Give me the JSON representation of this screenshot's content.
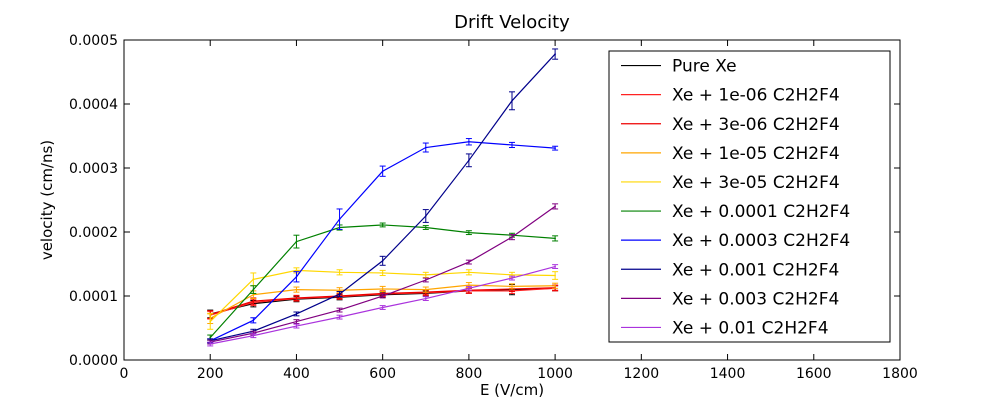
{
  "chart_data": {
    "type": "line",
    "title": "Drift Velocity",
    "xlabel": "E (V/cm)",
    "ylabel": "velocity (cm/ns)",
    "xlim": [
      0,
      1800
    ],
    "ylim": [
      0,
      0.0005
    ],
    "xticks": [
      "0",
      "200",
      "400",
      "600",
      "800",
      "1000",
      "1200",
      "1400",
      "1600",
      "1800"
    ],
    "yticks": [
      "0.0000",
      "0.0001",
      "0.0002",
      "0.0003",
      "0.0004",
      "0.0005"
    ],
    "grid": false,
    "legend_position": "top-right",
    "x": [
      200,
      300,
      400,
      500,
      600,
      700,
      800,
      900,
      1000
    ],
    "series": [
      {
        "name": "Pure Xe",
        "color": "#000000",
        "values": [
          7.2e-05,
          8.8e-05,
          9.5e-05,
          9.8e-05,
          0.000102,
          0.000104,
          0.000108,
          0.00011,
          0.000112
        ],
        "errors": [
          6e-06,
          5e-06,
          4e-06,
          4e-06,
          4e-06,
          4e-06,
          4e-06,
          8e-06,
          4e-06
        ]
      },
      {
        "name": "Xe + 1e-06 C2H2F4",
        "color": "#ff2222",
        "values": [
          7e-05,
          9e-05,
          9.6e-05,
          9.9e-05,
          0.000103,
          0.000105,
          0.000108,
          0.000108,
          0.000112
        ],
        "errors": [
          6e-06,
          5e-06,
          4e-06,
          4e-06,
          4e-06,
          4e-06,
          4e-06,
          4e-06,
          4e-06
        ]
      },
      {
        "name": "Xe + 3e-06 C2H2F4",
        "color": "#ee0000",
        "values": [
          7.1e-05,
          9.2e-05,
          9.7e-05,
          0.0001,
          0.000104,
          0.000106,
          0.000109,
          0.000111,
          0.000113
        ],
        "errors": [
          6e-06,
          5e-06,
          4e-06,
          4e-06,
          4e-06,
          4e-06,
          4e-06,
          4e-06,
          4e-06
        ]
      },
      {
        "name": "Xe + 1e-05 C2H2F4",
        "color": "#ffa500",
        "values": [
          6.5e-05,
          0.000102,
          0.00011,
          0.000109,
          0.000111,
          0.00011,
          0.000117,
          0.000115,
          0.000116
        ],
        "errors": [
          8e-06,
          6e-06,
          4e-06,
          4e-06,
          4e-06,
          4e-06,
          4e-06,
          4e-06,
          4e-06
        ]
      },
      {
        "name": "Xe + 3e-05 C2H2F4",
        "color": "#ffd700",
        "values": [
          6e-05,
          0.000126,
          0.00014,
          0.000137,
          0.000136,
          0.000133,
          0.000137,
          0.000133,
          0.000132
        ],
        "errors": [
          1.2e-05,
          1e-05,
          4e-06,
          4e-06,
          4e-06,
          4e-06,
          4e-06,
          4e-06,
          6e-06
        ]
      },
      {
        "name": "Xe + 0.0001 C2H2F4",
        "color": "#008000",
        "values": [
          3.5e-05,
          0.00011,
          0.000185,
          0.000207,
          0.000211,
          0.000207,
          0.000199,
          0.000195,
          0.00019
        ],
        "errors": [
          4e-06,
          6e-06,
          1e-05,
          4e-06,
          3e-06,
          3e-06,
          3e-06,
          3e-06,
          4e-06
        ]
      },
      {
        "name": "Xe + 0.0003 C2H2F4",
        "color": "#0000ff",
        "values": [
          3e-05,
          6.2e-05,
          0.00013,
          0.00022,
          0.000295,
          0.000332,
          0.000341,
          0.000336,
          0.000331
        ],
        "errors": [
          3e-06,
          4e-06,
          8e-06,
          1.6e-05,
          8e-06,
          7e-06,
          5e-06,
          4e-06,
          3e-06
        ]
      },
      {
        "name": "Xe + 0.001 C2H2F4",
        "color": "#00008b",
        "values": [
          3e-05,
          4.5e-05,
          7.2e-05,
          0.000103,
          0.000155,
          0.000225,
          0.000312,
          0.000405,
          0.000478
        ],
        "errors": [
          3e-06,
          3e-06,
          3e-06,
          4e-06,
          7e-06,
          1e-05,
          1e-05,
          1.4e-05,
          8e-06
        ]
      },
      {
        "name": "Xe + 0.003 C2H2F4",
        "color": "#800080",
        "values": [
          2.8e-05,
          4.2e-05,
          6e-05,
          7.8e-05,
          0.0001,
          0.000125,
          0.000153,
          0.000192,
          0.00024
        ],
        "errors": [
          3e-06,
          3e-06,
          3e-06,
          3e-06,
          3e-06,
          3e-06,
          3e-06,
          4e-06,
          4e-06
        ]
      },
      {
        "name": "Xe + 0.01 C2H2F4",
        "color": "#aa33dd",
        "values": [
          2.5e-05,
          3.8e-05,
          5.3e-05,
          6.7e-05,
          8.2e-05,
          9.6e-05,
          0.000112,
          0.000128,
          0.000146
        ],
        "errors": [
          3e-06,
          3e-06,
          3e-06,
          3e-06,
          3e-06,
          3e-06,
          3e-06,
          3e-06,
          3e-06
        ]
      }
    ]
  }
}
